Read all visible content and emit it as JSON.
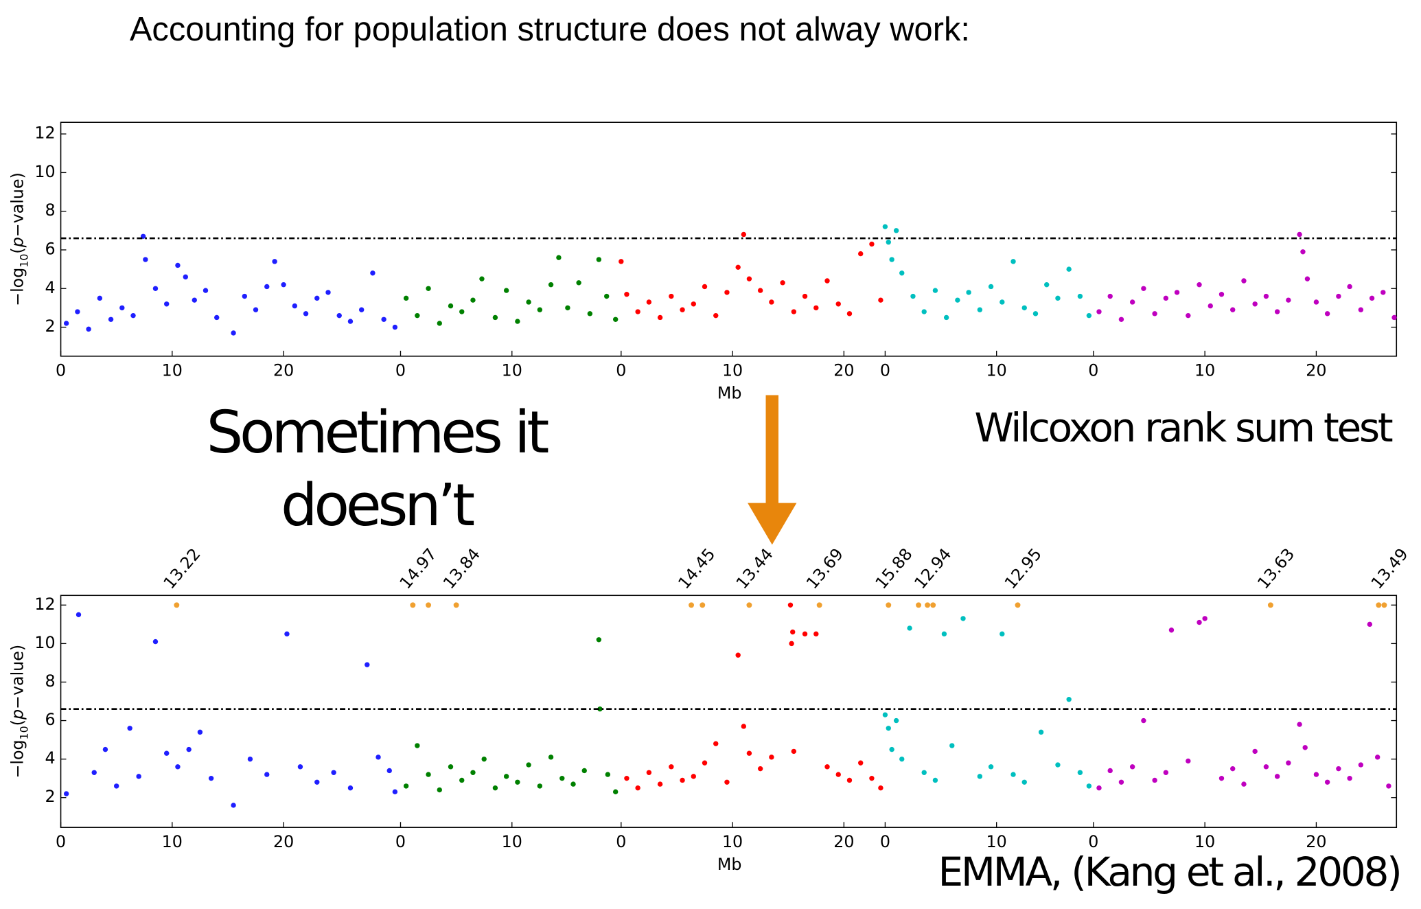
{
  "title": "Accounting for population structure does not alway work:",
  "caption_lines": [
    "Sometimes it",
    "doesn’t"
  ],
  "chart_data": [
    {
      "type": "scatter",
      "method": "Wilcoxon rank sum test",
      "xlabel": "Mb",
      "ylabel": [
        "−log",
        "10",
        "(",
        "p",
        "−value)"
      ],
      "ylim": [
        0.5,
        12.6
      ],
      "yticks": [
        2,
        4,
        6,
        8,
        10,
        12
      ],
      "threshold": 6.6,
      "series": [
        {
          "color": "#1f1fff",
          "length": 30.5,
          "xticks": [
            0,
            10,
            20
          ],
          "x": [
            0.5,
            1.5,
            2.5,
            3.5,
            4.5,
            5.5,
            6.5,
            7.4,
            7.6,
            8.5,
            9.5,
            10.5,
            11.2,
            12,
            13,
            14,
            15.5,
            16.5,
            17.5,
            18.5,
            19.2,
            20,
            21,
            22,
            23,
            24,
            25,
            26,
            27,
            28,
            29,
            30
          ],
          "values": [
            2.2,
            2.8,
            1.9,
            3.5,
            2.4,
            3.0,
            2.6,
            6.7,
            5.5,
            4.0,
            3.2,
            5.2,
            4.6,
            3.4,
            3.9,
            2.5,
            1.7,
            3.6,
            2.9,
            4.1,
            5.4,
            4.2,
            3.1,
            2.7,
            3.5,
            3.8,
            2.6,
            2.3,
            2.9,
            4.8,
            2.4,
            2.0
          ]
        },
        {
          "color": "#008000",
          "length": 19.8,
          "xticks": [
            0,
            10
          ],
          "x": [
            0.5,
            1.5,
            2.5,
            3.5,
            4.5,
            5.5,
            6.5,
            7.3,
            8.5,
            9.5,
            10.5,
            11.5,
            12.5,
            13.5,
            14.2,
            15,
            16,
            17,
            17.8,
            18.5,
            19.3
          ],
          "values": [
            3.5,
            2.6,
            4.0,
            2.2,
            3.1,
            2.8,
            3.4,
            4.5,
            2.5,
            3.9,
            2.3,
            3.3,
            2.9,
            4.2,
            5.6,
            3.0,
            4.3,
            2.7,
            5.5,
            3.6,
            2.4
          ]
        },
        {
          "color": "#ff0000",
          "length": 23.7,
          "xticks": [
            0,
            10,
            20
          ],
          "x": [
            0,
            0.5,
            1.5,
            2.5,
            3.5,
            4.5,
            5.5,
            6.5,
            7.5,
            8.5,
            9.5,
            10.5,
            11,
            11.5,
            12.5,
            13.5,
            14.5,
            15.5,
            16.5,
            17.5,
            18.5,
            19.5,
            20.5,
            21.5,
            22.5,
            23.3
          ],
          "values": [
            5.4,
            3.7,
            2.8,
            3.3,
            2.5,
            3.6,
            2.9,
            3.2,
            4.1,
            2.6,
            3.8,
            5.1,
            6.8,
            4.5,
            3.9,
            3.3,
            4.3,
            2.8,
            3.6,
            3.0,
            4.4,
            3.2,
            2.7,
            5.8,
            6.3,
            3.4
          ]
        },
        {
          "color": "#00bfbf",
          "length": 18.7,
          "xticks": [
            0,
            10
          ],
          "x": [
            0,
            0.3,
            0.6,
            1,
            1.5,
            2.5,
            3.5,
            4.5,
            5.5,
            6.5,
            7.5,
            8.5,
            9.5,
            10.5,
            11.5,
            12.5,
            13.5,
            14.5,
            15.5,
            16.5,
            17.5,
            18.3
          ],
          "values": [
            7.2,
            6.4,
            5.5,
            7.0,
            4.8,
            3.6,
            2.8,
            3.9,
            2.5,
            3.4,
            3.8,
            2.9,
            4.1,
            3.3,
            5.4,
            3.0,
            2.7,
            4.2,
            3.5,
            5.0,
            3.6,
            2.6
          ]
        },
        {
          "color": "#bf00bf",
          "length": 27.2,
          "xticks": [
            0,
            10,
            20
          ],
          "x": [
            0.5,
            1.5,
            2.5,
            3.5,
            4.5,
            5.5,
            6.5,
            7.5,
            8.5,
            9.5,
            10.5,
            11.5,
            12.5,
            13.5,
            14.5,
            15.5,
            16.5,
            17.5,
            18.5,
            18.8,
            19.2,
            20,
            21,
            22,
            23,
            24,
            25,
            26,
            27
          ],
          "values": [
            2.8,
            3.6,
            2.4,
            3.3,
            4.0,
            2.7,
            3.5,
            3.8,
            2.6,
            4.2,
            3.1,
            3.7,
            2.9,
            4.4,
            3.2,
            3.6,
            2.8,
            3.4,
            6.8,
            5.9,
            4.5,
            3.3,
            2.7,
            3.6,
            4.1,
            2.9,
            3.5,
            3.8,
            2.5
          ]
        }
      ]
    },
    {
      "type": "scatter",
      "method": "EMMA, (Kang et al., 2008)",
      "xlabel": "Mb",
      "ylabel": [
        "−log",
        "10",
        "(",
        "p",
        "−value)"
      ],
      "ylim": [
        0.45,
        12.5
      ],
      "yticks": [
        2,
        4,
        6,
        8,
        10,
        12
      ],
      "threshold": 6.6,
      "capped_y": 12,
      "capped_color": "#f0a030",
      "series": [
        {
          "color": "#1f1fff",
          "length": 30.5,
          "xticks": [
            0,
            10,
            20
          ],
          "x": [
            0.5,
            1.6,
            3,
            4,
            5,
            6.2,
            7,
            8.5,
            9.5,
            10.5,
            11.5,
            12.5,
            13.5,
            15.5,
            17,
            18.5,
            20.3,
            21.5,
            23,
            24.5,
            26,
            27.5,
            28.5,
            29.5,
            30
          ],
          "values": [
            2.2,
            11.5,
            3.3,
            4.5,
            2.6,
            5.6,
            3.1,
            10.1,
            4.3,
            3.6,
            4.5,
            5.4,
            3.0,
            1.6,
            4.0,
            3.2,
            10.5,
            3.6,
            2.8,
            3.3,
            2.5,
            8.9,
            4.1,
            3.4,
            2.3
          ],
          "capped_x": [
            10.4
          ],
          "peak_labels": [
            {
              "x": 10.4,
              "value": 13.22
            }
          ]
        },
        {
          "color": "#008000",
          "length": 19.8,
          "xticks": [
            0,
            10
          ],
          "x": [
            0.5,
            1.5,
            2.5,
            3.5,
            4.5,
            5.5,
            6.5,
            7.5,
            8.5,
            9.5,
            10.5,
            11.5,
            12.5,
            13.5,
            14.5,
            15.5,
            16.5,
            17.8,
            17.9,
            18.6,
            19.3
          ],
          "values": [
            2.6,
            4.7,
            3.2,
            2.4,
            3.6,
            2.9,
            3.3,
            4.0,
            2.5,
            3.1,
            2.8,
            3.7,
            2.6,
            4.1,
            3.0,
            2.7,
            3.4,
            10.2,
            6.6,
            3.2,
            2.3
          ],
          "capped_x": [
            1.1,
            2.5,
            5.0
          ],
          "peak_labels": [
            {
              "x": 1.1,
              "value": 14.97
            },
            {
              "x": 5.0,
              "value": 13.84
            }
          ]
        },
        {
          "color": "#ff0000",
          "length": 23.7,
          "xticks": [
            0,
            10,
            20
          ],
          "x": [
            0.5,
            1.5,
            2.5,
            3.5,
            4.5,
            5.5,
            6.5,
            7.5,
            8.5,
            9.5,
            10.5,
            11,
            11.5,
            12.5,
            13.5,
            15.2,
            15.3,
            15.4,
            15.5,
            16.5,
            17.5,
            18.5,
            19.5,
            20.5,
            21.5,
            22.5,
            23.3
          ],
          "values": [
            3.0,
            2.5,
            3.3,
            2.7,
            3.6,
            2.9,
            3.1,
            3.8,
            4.8,
            2.8,
            9.4,
            5.7,
            4.3,
            3.5,
            4.1,
            12.0,
            10.0,
            10.6,
            4.4,
            10.5,
            10.5,
            3.6,
            3.2,
            2.9,
            3.8,
            3.0,
            2.5
          ],
          "capped_x": [
            6.3,
            7.3,
            11.5,
            17.8
          ],
          "peak_labels": [
            {
              "x": 6.3,
              "value": 14.45
            },
            {
              "x": 11.5,
              "value": 13.44
            },
            {
              "x": 17.8,
              "value": 13.69
            }
          ]
        },
        {
          "color": "#00bfbf",
          "length": 18.7,
          "xticks": [
            0,
            10
          ],
          "x": [
            0,
            0.3,
            0.6,
            1,
            1.5,
            2.2,
            3.5,
            4.5,
            5.3,
            6,
            7,
            8.5,
            9.5,
            10.5,
            11.5,
            12.5,
            14,
            15.5,
            16.5,
            17.5,
            18.3
          ],
          "values": [
            6.3,
            5.6,
            4.5,
            6.0,
            4.0,
            10.8,
            3.3,
            2.9,
            10.5,
            4.7,
            11.3,
            3.1,
            3.6,
            10.5,
            3.2,
            2.8,
            5.4,
            3.7,
            7.1,
            3.3,
            2.6
          ],
          "capped_x": [
            0.3,
            3.0,
            3.8,
            4.3,
            11.9
          ],
          "peak_labels": [
            {
              "x": 0.3,
              "value": 15.88
            },
            {
              "x": 3.8,
              "value": 12.94
            },
            {
              "x": 11.9,
              "value": 12.95
            }
          ]
        },
        {
          "color": "#bf00bf",
          "length": 27.2,
          "xticks": [
            0,
            10,
            20
          ],
          "x": [
            0.5,
            1.5,
            2.5,
            3.5,
            4.5,
            5.5,
            6.5,
            7,
            8.5,
            9.5,
            10,
            11.5,
            12.5,
            13.5,
            14.5,
            15.5,
            16.5,
            17.5,
            18.5,
            19,
            20,
            21,
            22,
            23,
            24,
            24.8,
            25.5,
            26.5
          ],
          "values": [
            2.5,
            3.4,
            2.8,
            3.6,
            6.0,
            2.9,
            3.3,
            10.7,
            3.9,
            11.1,
            11.3,
            3.0,
            3.5,
            2.7,
            4.4,
            3.6,
            3.1,
            3.8,
            5.8,
            4.6,
            3.2,
            2.8,
            3.5,
            3.0,
            3.7,
            11.0,
            4.1,
            2.6
          ],
          "capped_x": [
            15.9,
            25.6,
            26.1
          ],
          "peak_labels": [
            {
              "x": 15.9,
              "value": 13.63
            },
            {
              "x": 26.1,
              "value": 13.49
            }
          ]
        }
      ]
    }
  ]
}
